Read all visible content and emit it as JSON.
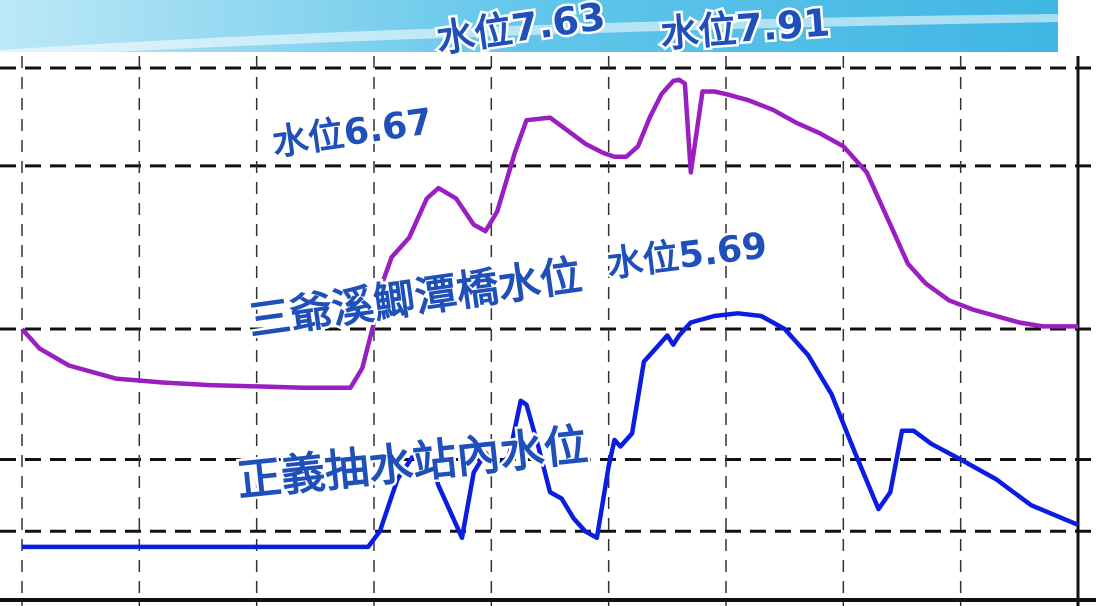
{
  "chart_data": {
    "type": "line",
    "title": "",
    "xlabel": "",
    "ylabel": "",
    "ylim": [
      4.0,
      8.2
    ],
    "xlim": [
      0,
      9
    ],
    "grid": true,
    "series": [
      {
        "name": "三爺溪鯽潭橋水位",
        "color": "#9a1fc0",
        "x": [
          0.0,
          0.15,
          0.4,
          0.8,
          1.2,
          1.6,
          2.0,
          2.4,
          2.8,
          2.9,
          3.0,
          3.05,
          3.15,
          3.3,
          3.45,
          3.55,
          3.7,
          3.85,
          3.95,
          4.05,
          4.2,
          4.3,
          4.5,
          4.65,
          4.8,
          4.95,
          5.05,
          5.15,
          5.25,
          5.35,
          5.45,
          5.5,
          5.55,
          5.6,
          5.65,
          5.7,
          5.8,
          5.9,
          6.0,
          6.2,
          6.4,
          6.6,
          6.8,
          7.0,
          7.2,
          7.4,
          7.55,
          7.7,
          7.9,
          8.1,
          8.3,
          8.5,
          8.7,
          9.0
        ],
        "y": [
          6.0,
          5.85,
          5.72,
          5.62,
          5.59,
          5.57,
          5.56,
          5.55,
          5.55,
          5.7,
          6.05,
          6.3,
          6.55,
          6.7,
          7.0,
          7.08,
          7.0,
          6.8,
          6.75,
          6.9,
          7.35,
          7.6,
          7.62,
          7.52,
          7.42,
          7.35,
          7.32,
          7.32,
          7.4,
          7.62,
          7.8,
          7.85,
          7.9,
          7.91,
          7.88,
          7.2,
          7.82,
          7.82,
          7.8,
          7.75,
          7.68,
          7.58,
          7.5,
          7.4,
          7.2,
          6.8,
          6.5,
          6.35,
          6.22,
          6.15,
          6.1,
          6.05,
          6.02,
          6.02
        ]
      },
      {
        "name": "正義抽水站內水位",
        "color": "#0b1de0",
        "x": [
          0.0,
          0.5,
          1.0,
          1.5,
          2.0,
          2.5,
          2.95,
          3.05,
          3.2,
          3.35,
          3.45,
          3.55,
          3.65,
          3.75,
          3.85,
          3.95,
          4.05,
          4.15,
          4.25,
          4.3,
          4.4,
          4.5,
          4.6,
          4.7,
          4.8,
          4.9,
          5.0,
          5.05,
          5.1,
          5.2,
          5.3,
          5.4,
          5.5,
          5.55,
          5.6,
          5.7,
          5.9,
          6.1,
          6.3,
          6.5,
          6.7,
          6.9,
          7.1,
          7.3,
          7.4,
          7.5,
          7.6,
          7.75,
          8.0,
          8.3,
          8.6,
          9.0
        ],
        "y": [
          4.33,
          4.33,
          4.33,
          4.33,
          4.33,
          4.33,
          4.33,
          4.45,
          4.85,
          5.05,
          5.07,
          4.8,
          4.6,
          4.4,
          4.9,
          5.05,
          4.95,
          5.02,
          5.45,
          5.42,
          5.1,
          4.75,
          4.7,
          4.55,
          4.45,
          4.4,
          4.95,
          5.15,
          5.1,
          5.2,
          5.75,
          5.85,
          5.95,
          5.88,
          5.95,
          6.05,
          6.1,
          6.12,
          6.1,
          6.0,
          5.8,
          5.5,
          5.05,
          4.62,
          4.75,
          5.22,
          5.22,
          5.12,
          5.0,
          4.85,
          4.65,
          4.5
        ]
      }
    ],
    "annotations": [
      {
        "text": "水位7.63",
        "x": 3.55,
        "y": 8.12,
        "rotate": -8,
        "size": 38
      },
      {
        "text": "水位7.91",
        "x": 5.45,
        "y": 8.16,
        "rotate": -4,
        "size": 38
      },
      {
        "text": "水位6.67",
        "x": 2.15,
        "y": 7.33,
        "rotate": -8,
        "size": 36
      },
      {
        "text": "水位5.69",
        "x": 5.0,
        "y": 6.4,
        "rotate": -7,
        "size": 36
      },
      {
        "text": "三爺溪鯽潭橋水位",
        "x": 1.95,
        "y": 5.95,
        "rotate": -8,
        "size": 42
      },
      {
        "text": "正義抽水站內水位",
        "x": 1.85,
        "y": 4.72,
        "rotate": -6,
        "size": 44
      }
    ]
  }
}
